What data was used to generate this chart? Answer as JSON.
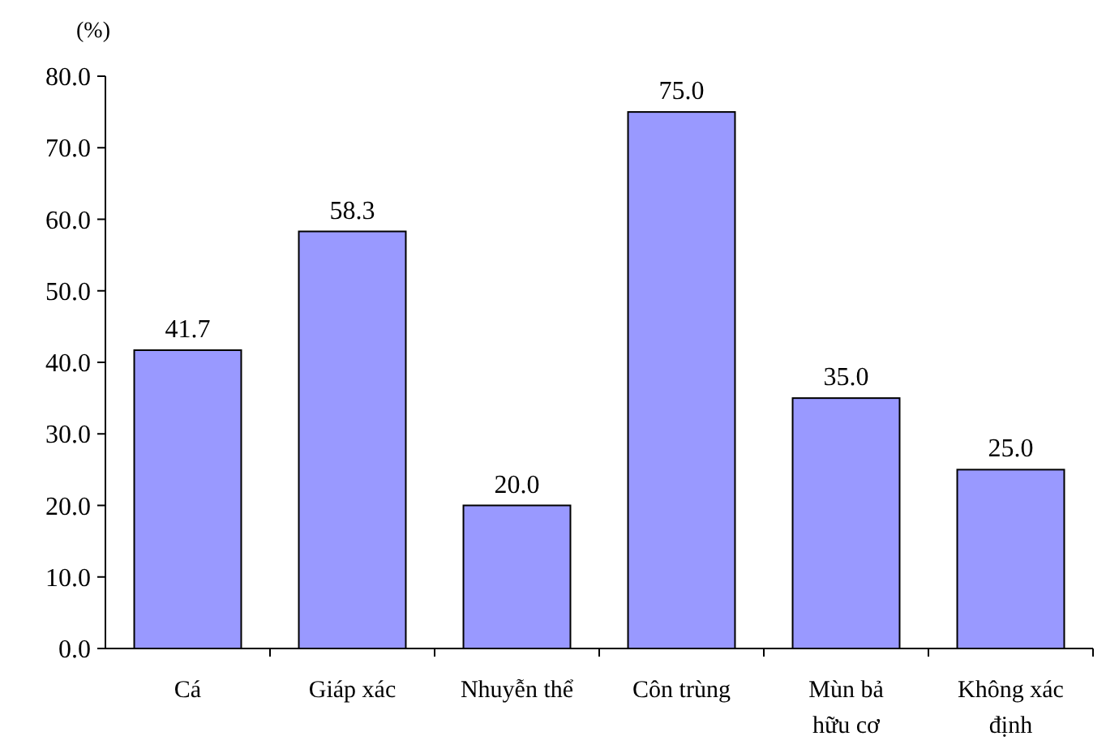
{
  "chart_data": {
    "type": "bar",
    "ylabel": "(%)",
    "categories": [
      "Cá",
      "Giáp xác",
      "Nhuyễn thể",
      "Côn trùng",
      "Mùn bả\nhữu cơ",
      "Không xác\nđịnh"
    ],
    "values": [
      41.7,
      58.3,
      20.0,
      75.0,
      35.0,
      25.0
    ],
    "color": "#9999ff",
    "value_labels": [
      "41.7",
      "58.3",
      "20.0",
      "75.0",
      "35.0",
      "25.0"
    ],
    "ylim": [
      0,
      80
    ],
    "yticks": [
      {
        "value": 0,
        "label": "0.0"
      },
      {
        "value": 10,
        "label": "10.0"
      },
      {
        "value": 20,
        "label": "20.0"
      },
      {
        "value": 30,
        "label": "30.0"
      },
      {
        "value": 40,
        "label": "40.0"
      },
      {
        "value": 50,
        "label": "50.0"
      },
      {
        "value": 60,
        "label": "60.0"
      },
      {
        "value": 70,
        "label": "70.0"
      },
      {
        "value": 80,
        "label": "80.0"
      }
    ],
    "grid": false
  }
}
